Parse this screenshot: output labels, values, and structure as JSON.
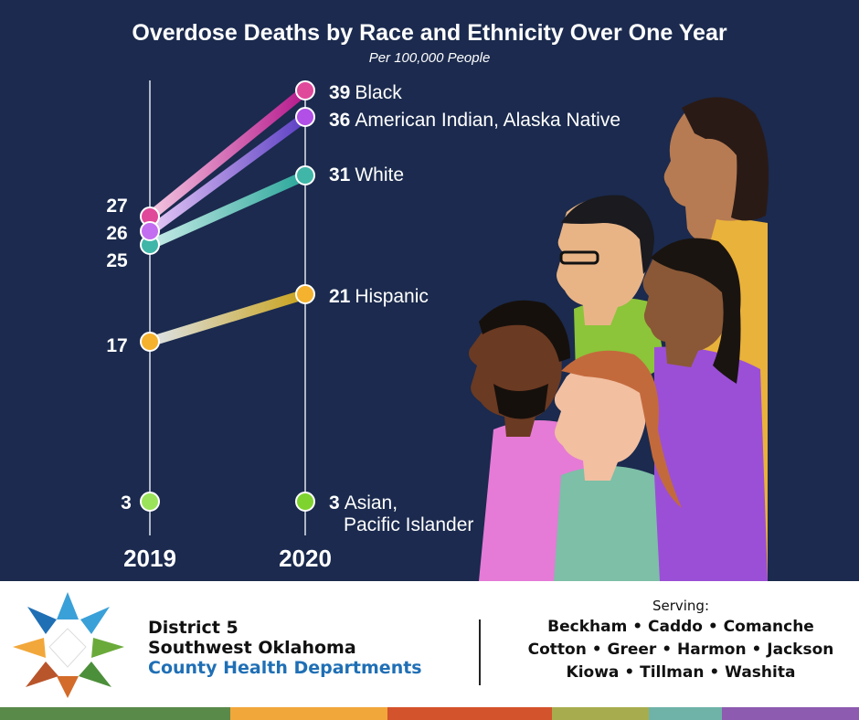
{
  "colors": {
    "background": "#1b2a4e",
    "black": "#e0489a",
    "american_indian": "#b14fe6",
    "white": "#3fb6a8",
    "hispanic": "#f4b22e",
    "asian": "#9be35a"
  },
  "chart_data": {
    "type": "line",
    "title": "Overdose Deaths by Race and Ethnicity Over One Year",
    "subtitle": "Per 100,000 People",
    "x": [
      "2019",
      "2020"
    ],
    "series": [
      {
        "name": "Black",
        "values": [
          27,
          39
        ],
        "label_2019": "27",
        "label_2020": "39"
      },
      {
        "name": "American Indian, Alaska Native",
        "values": [
          26,
          36
        ],
        "label_2019": "26",
        "label_2020": "36"
      },
      {
        "name": "White",
        "values": [
          25,
          31
        ],
        "label_2019": "25",
        "label_2020": "31"
      },
      {
        "name": "Hispanic",
        "values": [
          17,
          21
        ],
        "label_2019": "17",
        "label_2020": "21"
      },
      {
        "name": "Asian, Pacific Islander",
        "name_line1": "Asian,",
        "name_line2": "Pacific Islander",
        "values": [
          3,
          3
        ],
        "label_2019": "3",
        "label_2020": "3"
      }
    ]
  },
  "footer": {
    "district_line1": "District 5",
    "district_line2": "Southwest Oklahoma",
    "district_line3": "County Health Departments",
    "serving_label": "Serving:",
    "counties_row1": "Beckham • Caddo • Comanche",
    "counties_row2": "Cotton • Greer • Harmon • Jackson",
    "counties_row3": "Kiowa • Tillman • Washita"
  },
  "logo_icon": "star-logo-icon",
  "illustration_icon": "people-illustration"
}
